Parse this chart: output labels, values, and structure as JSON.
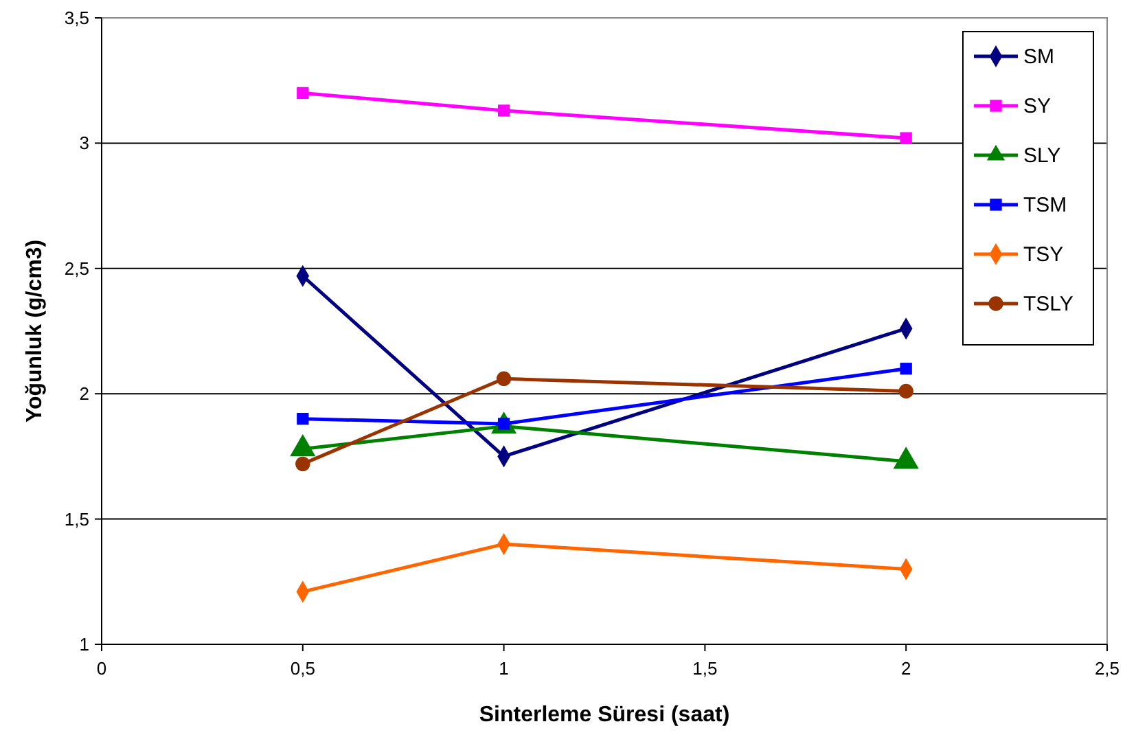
{
  "chart_data": {
    "type": "line",
    "xlabel": "Sinterleme Süresi (saat)",
    "ylabel": "Yoğunluk (g/cm3)",
    "xlim": [
      0,
      2.5
    ],
    "xticks": [
      0,
      {
        "value": 0.5,
        "label": "0,5"
      },
      1,
      {
        "value": 1.5,
        "label": "1,5"
      },
      2,
      {
        "value": 2.5,
        "label": "2,5"
      }
    ],
    "ylim": [
      1,
      3.5
    ],
    "yticks": [
      1,
      {
        "value": 1.5,
        "label": "1,5"
      },
      2,
      {
        "value": 2.5,
        "label": "2,5"
      },
      3,
      {
        "value": 3.5,
        "label": "3,5"
      }
    ],
    "grid": "y",
    "legend": "top right",
    "line_style": "solid",
    "x": [
      0.5,
      1,
      2
    ],
    "series": [
      {
        "name": "SM",
        "color": "#000080",
        "marker": "diamond",
        "values": [
          2.47,
          1.75,
          2.26
        ]
      },
      {
        "name": "SY",
        "color": "#ff00ff",
        "marker": "square",
        "values": [
          3.2,
          3.13,
          3.02
        ]
      },
      {
        "name": "SLY",
        "color": "#008000",
        "marker": "triangle",
        "values": [
          1.78,
          1.87,
          1.73
        ]
      },
      {
        "name": "TSM",
        "color": "#0000ff",
        "marker": "square",
        "values": [
          1.9,
          1.88,
          2.1
        ]
      },
      {
        "name": "TSY",
        "color": "#ff6600",
        "marker": "diamond",
        "values": [
          1.21,
          1.4,
          1.3
        ]
      },
      {
        "name": "TSLY",
        "color": "#993300",
        "marker": "circle",
        "values": [
          1.72,
          2.06,
          2.01
        ]
      }
    ]
  }
}
